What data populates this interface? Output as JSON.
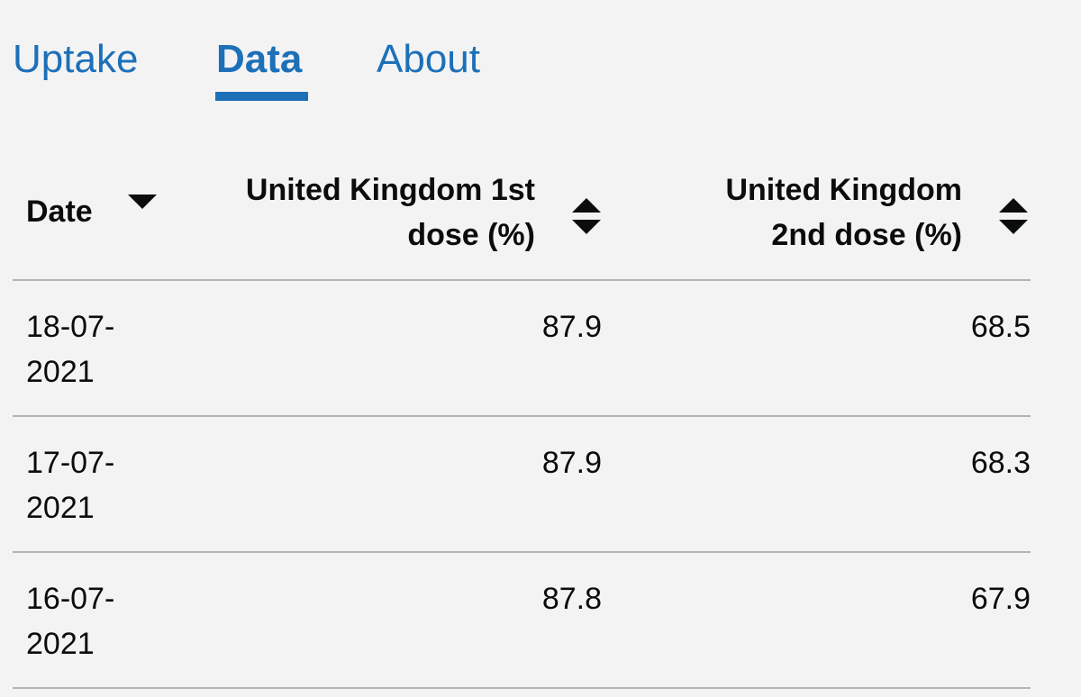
{
  "tabs": [
    {
      "label": "Uptake",
      "active": false
    },
    {
      "label": "Data",
      "active": true
    },
    {
      "label": "About",
      "active": false
    }
  ],
  "colors": {
    "link": "#1d70b8",
    "text": "#0b0c0c",
    "divider": "#b1b4b6",
    "background": "#f3f3f4"
  },
  "table": {
    "headers": {
      "date": "Date",
      "col1": "United Kingdom 1st dose (%)",
      "col2": "United Kingdom 2nd dose (%)"
    },
    "sort": {
      "date": "descending",
      "col1": "none",
      "col2": "none"
    },
    "rows": [
      {
        "date": "18-07-2021",
        "first": "87.9",
        "second": "68.5"
      },
      {
        "date": "17-07-2021",
        "first": "87.9",
        "second": "68.3"
      },
      {
        "date": "16-07-2021",
        "first": "87.8",
        "second": "67.9"
      }
    ]
  }
}
